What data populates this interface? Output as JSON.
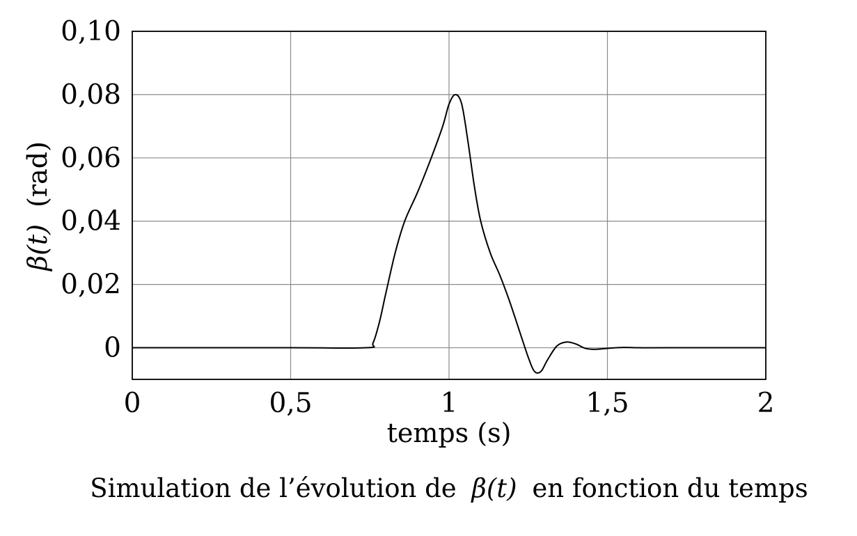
{
  "chart_data": {
    "type": "line",
    "xlabel": "temps (s)",
    "ylabel_symbol": "β(t)",
    "ylabel_unit": "(rad)",
    "caption_prefix": "Simulation de l’évolution de",
    "caption_symbol": "β(t)",
    "caption_suffix": "en fonction du temps",
    "xlim": [
      0,
      2
    ],
    "ylim": [
      -0.01,
      0.1
    ],
    "x_ticks": [
      0,
      0.5,
      1,
      1.5,
      2
    ],
    "x_tick_labels": [
      "0",
      "0,5",
      "1",
      "1,5",
      "2"
    ],
    "y_ticks": [
      0,
      0.02,
      0.04,
      0.06,
      0.08,
      0.1
    ],
    "y_tick_labels": [
      "0",
      "0,02",
      "0,04",
      "0,06",
      "0,08",
      "0,10"
    ],
    "grid": true,
    "line_color": "#000000",
    "series": [
      {
        "x": [
          0,
          0.5,
          0.74,
          0.76,
          0.78,
          0.8,
          0.83,
          0.86,
          0.9,
          0.94,
          0.98,
          1.0,
          1.02,
          1.04,
          1.06,
          1.08,
          1.1,
          1.13,
          1.16,
          1.19,
          1.22,
          1.25,
          1.27,
          1.29,
          1.31,
          1.34,
          1.37,
          1.4,
          1.43,
          1.46,
          1.5,
          1.55,
          1.6,
          1.7,
          2.0
        ],
        "y": [
          0,
          0,
          0,
          0.0015,
          0.008,
          0.017,
          0.03,
          0.04,
          0.049,
          0.059,
          0.07,
          0.077,
          0.08,
          0.077,
          0.065,
          0.051,
          0.04,
          0.03,
          0.023,
          0.015,
          0.006,
          -0.003,
          -0.0075,
          -0.0075,
          -0.004,
          0.0005,
          0.0018,
          0.0012,
          -0.0002,
          -0.0005,
          -0.0002,
          0.0001,
          0.0,
          0.0,
          0.0
        ]
      }
    ]
  }
}
